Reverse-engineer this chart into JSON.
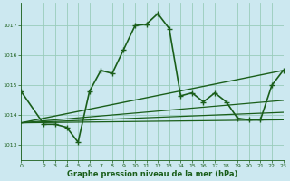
{
  "title": "Graphe pression niveau de la mer (hPa)",
  "background_color": "#cce8f0",
  "grid_color": "#99ccbb",
  "line_color": "#1a5e1a",
  "xlim": [
    0,
    23
  ],
  "ylim": [
    1012.5,
    1017.75
  ],
  "yticks": [
    1013,
    1014,
    1015,
    1016,
    1017
  ],
  "xticks": [
    0,
    2,
    3,
    4,
    5,
    6,
    7,
    8,
    9,
    10,
    11,
    12,
    13,
    14,
    15,
    16,
    17,
    18,
    19,
    20,
    21,
    22,
    23
  ],
  "line_main": {
    "x": [
      0,
      2,
      3,
      4,
      5,
      6,
      7,
      8,
      9,
      10,
      11,
      12,
      13,
      14,
      15,
      16,
      17,
      18,
      19,
      20,
      21,
      22,
      23
    ],
    "y": [
      1014.8,
      1013.7,
      1013.7,
      1013.6,
      1013.1,
      1014.8,
      1015.5,
      1015.4,
      1016.2,
      1017.0,
      1017.05,
      1017.4,
      1016.9,
      1014.65,
      1014.75,
      1014.45,
      1014.75,
      1014.45,
      1013.9,
      1013.85,
      1013.85,
      1015.0,
      1015.5
    ]
  },
  "line_a": {
    "x": [
      0,
      23
    ],
    "y": [
      1013.75,
      1015.5
    ]
  },
  "line_b": {
    "x": [
      0,
      23
    ],
    "y": [
      1013.75,
      1013.85
    ]
  },
  "line_c": {
    "x": [
      0,
      23
    ],
    "y": [
      1013.75,
      1014.1
    ]
  },
  "line_d": {
    "x": [
      0,
      23
    ],
    "y": [
      1013.75,
      1014.5
    ]
  }
}
